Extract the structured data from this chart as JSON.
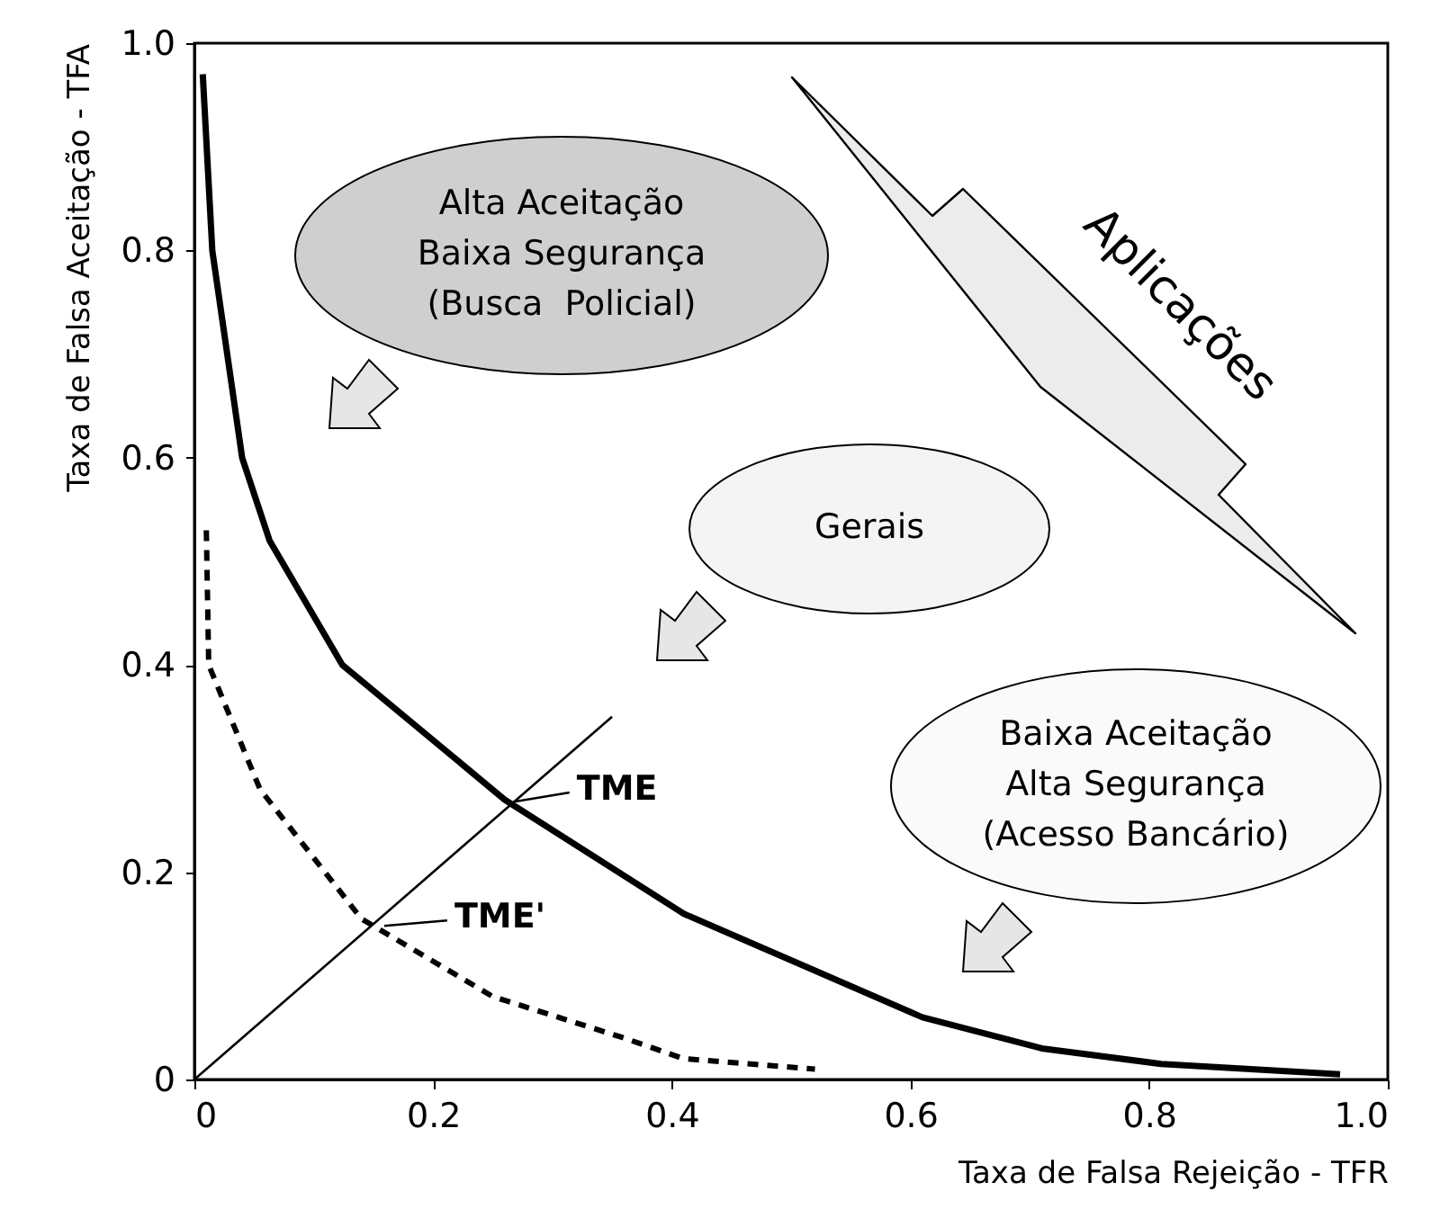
{
  "chart_data": {
    "type": "line",
    "xlabel": "Taxa de Falsa Rejeição - TFR",
    "ylabel": "Taxa de Falsa Aceitação - TFA",
    "xlim": [
      0,
      1
    ],
    "ylim": [
      0,
      1
    ],
    "xticks": [
      0,
      0.2,
      0.4,
      0.6,
      0.8,
      {
        "value": 1,
        "label": "1.0"
      }
    ],
    "yticks": [
      0,
      0.2,
      0.4,
      0.6,
      0.8,
      {
        "value": 1,
        "label": "1.0"
      }
    ],
    "grid": false,
    "marker": "none",
    "series": [
      {
        "color": "#000000",
        "line_style": "solid",
        "x": [
          0.007,
          0.015,
          0.04,
          0.063,
          0.124,
          0.26,
          0.41,
          0.45,
          0.51,
          0.61,
          0.71,
          0.81,
          0.96
        ],
        "values": [
          0.97,
          0.8,
          0.6,
          0.52,
          0.4,
          0.27,
          0.16,
          0.14,
          0.11,
          0.06,
          0.03,
          0.015,
          0.005
        ]
      },
      {
        "color": "#000000",
        "line_style": "dashed",
        "x": [
          0.01,
          0.012,
          0.055,
          0.14,
          0.25,
          0.36,
          0.41,
          0.52
        ],
        "values": [
          0.53,
          0.4,
          0.28,
          0.155,
          0.08,
          0.04,
          0.02,
          0.01
        ]
      },
      {
        "color": "#000000",
        "line_style": "solid",
        "x": [
          0,
          0.35
        ],
        "values": [
          0,
          0.35
        ]
      }
    ],
    "annotations": [
      {
        "text": "TME",
        "x": 0.26,
        "y": 0.27
      },
      {
        "text": "TME'",
        "x": 0.15,
        "y": 0.15
      },
      "Alta Aceitação\nBaixa Segurança\n(Busca  Policial)",
      "Gerais",
      "Baixa Aceitação\nAlta Segurança\n(Acesso Bancário)",
      "Aplicações"
    ]
  }
}
